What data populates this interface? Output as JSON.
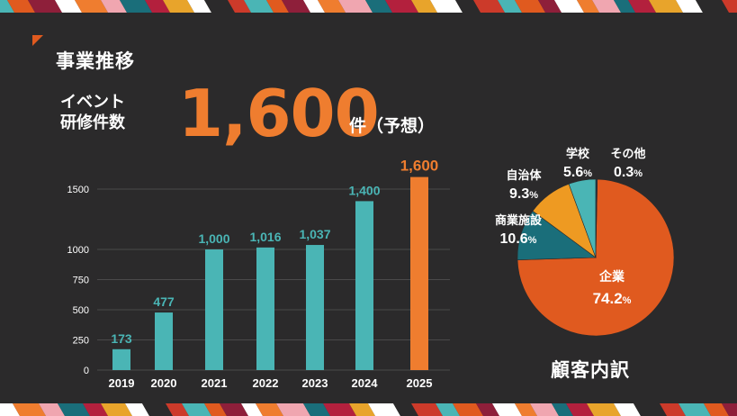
{
  "page": {
    "title": "事業推移",
    "metric_label_line1": "イベント",
    "metric_label_line2": "研修件数",
    "metric_value": "1,600",
    "metric_unit": "件（予想）",
    "pie_title": "顧客内訳"
  },
  "colors": {
    "background": "#2b2a2b",
    "teal": "#4ab5b5",
    "orange": "#ef7d2f",
    "pie_orange": "#e05a1f",
    "pie_darkteal": "#1a6e7a",
    "pie_yellow": "#ee9a22",
    "pie_teal": "#4ab5b5",
    "pie_darkblue": "#1a3b52",
    "axis_text": "#ffffff",
    "grid": "#4a494a"
  },
  "chart_data": [
    {
      "type": "bar",
      "title": "",
      "xlabel": "",
      "ylabel": "",
      "categories": [
        "2019",
        "2020",
        "2021",
        "2022",
        "2023",
        "2024",
        "2025"
      ],
      "values": [
        173,
        477,
        1000,
        1016,
        1037,
        1400,
        1600
      ],
      "data_labels": [
        "173",
        "477",
        "1,000",
        "1,016",
        "1,037",
        "1,400",
        "1,600"
      ],
      "projected": [
        false,
        false,
        false,
        false,
        false,
        false,
        true
      ],
      "ylim": [
        0,
        1600
      ],
      "yticks": [
        0,
        250,
        500,
        750,
        1000,
        1500
      ],
      "grid": true
    },
    {
      "type": "pie",
      "title": "顧客内訳",
      "slices": [
        {
          "label": "企業",
          "value": 74.2,
          "display": "74.2",
          "color": "#e05a1f"
        },
        {
          "label": "商業施設",
          "value": 10.6,
          "display": "10.6",
          "color": "#1a6e7a"
        },
        {
          "label": "自治体",
          "value": 9.3,
          "display": "9.3",
          "color": "#ee9a22"
        },
        {
          "label": "学校",
          "value": 5.6,
          "display": "5.6",
          "color": "#4ab5b5"
        },
        {
          "label": "その他",
          "value": 0.3,
          "display": "0.3",
          "color": "#1a3b52"
        }
      ],
      "percent_symbol": "%"
    }
  ]
}
